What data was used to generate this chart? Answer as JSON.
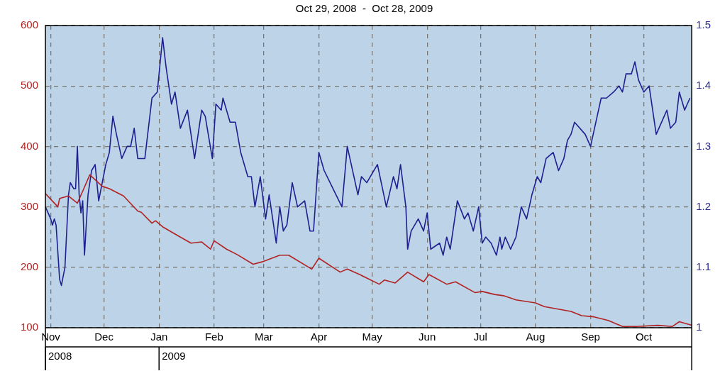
{
  "chart_data": {
    "type": "line",
    "title": "Oct 29, 2008  -  Oct 28, 2009",
    "xlim": [
      "2008-10-29",
      "2009-10-28"
    ],
    "xticks": [
      {
        "value": "2008-11-01",
        "label": "Nov"
      },
      {
        "value": "2008-12-01",
        "label": "Dec"
      },
      {
        "value": "2009-01-01",
        "label": "Jan"
      },
      {
        "value": "2009-02-01",
        "label": "Feb"
      },
      {
        "value": "2009-03-01",
        "label": "Mar"
      },
      {
        "value": "2009-04-01",
        "label": "Apr"
      },
      {
        "value": "2009-05-01",
        "label": "May"
      },
      {
        "value": "2009-06-01",
        "label": "Jun"
      },
      {
        "value": "2009-07-01",
        "label": "Jul"
      },
      {
        "value": "2009-08-01",
        "label": "Aug"
      },
      {
        "value": "2009-09-01",
        "label": "Sep"
      },
      {
        "value": "2009-10-01",
        "label": "Oct"
      }
    ],
    "ylim": [
      100,
      600
    ],
    "yticks": [
      100,
      200,
      300,
      400,
      500,
      600
    ],
    "y2lim": [
      1,
      1.5
    ],
    "y2ticks": [
      1,
      1.1,
      1.2,
      1.3,
      1.4,
      1.5
    ],
    "grid": true,
    "legend": false,
    "marker": "none",
    "line_style": "solid",
    "annotations": [
      "2008",
      "2009"
    ],
    "series": [
      {
        "color": "#b22222",
        "x": [
          "2008-10-29",
          "2008-11-05",
          "2008-11-06",
          "2008-11-11",
          "2008-11-16",
          "2008-11-19",
          "2008-11-23",
          "2008-11-30",
          "2008-12-04",
          "2008-12-12",
          "2008-12-20",
          "2008-12-22",
          "2008-12-28",
          "2008-12-30",
          "2009-01-03",
          "2009-01-13",
          "2009-01-19",
          "2009-01-25",
          "2009-01-30",
          "2009-02-01",
          "2009-02-08",
          "2009-02-14",
          "2009-02-23",
          "2009-02-28",
          "2009-03-10",
          "2009-03-15",
          "2009-03-28",
          "2009-04-01",
          "2009-04-13",
          "2009-04-17",
          "2009-04-24",
          "2009-05-05",
          "2009-05-08",
          "2009-05-14",
          "2009-05-21",
          "2009-05-30",
          "2009-06-02",
          "2009-06-12",
          "2009-06-17",
          "2009-06-28",
          "2009-07-02",
          "2009-07-09",
          "2009-07-14",
          "2009-07-21",
          "2009-08-01",
          "2009-08-06",
          "2009-08-21",
          "2009-08-27",
          "2009-09-03",
          "2009-09-11",
          "2009-09-19",
          "2009-09-27",
          "2009-10-09",
          "2009-10-17",
          "2009-10-21",
          "2009-10-28"
        ],
        "values": [
          322,
          300,
          314,
          318,
          306,
          326,
          353,
          334,
          330,
          318,
          293,
          291,
          273,
          277,
          267,
          250,
          240,
          242,
          230,
          244,
          230,
          221,
          205,
          209,
          220,
          220,
          197,
          215,
          192,
          197,
          188,
          172,
          179,
          174,
          192,
          176,
          188,
          172,
          176,
          158,
          160,
          155,
          153,
          146,
          141,
          135,
          127,
          120,
          118,
          112,
          102,
          102,
          104,
          102,
          110,
          104
        ]
      },
      {
        "color": "#1f1f8f",
        "axis": "y2",
        "x": [
          "2008-10-29",
          "2008-11-01",
          "2008-11-02",
          "2008-11-03",
          "2008-11-04",
          "2008-11-06",
          "2008-11-07",
          "2008-11-09",
          "2008-11-11",
          "2008-11-12",
          "2008-11-14",
          "2008-11-15",
          "2008-11-16",
          "2008-11-17",
          "2008-11-18",
          "2008-11-19",
          "2008-11-20",
          "2008-11-22",
          "2008-11-24",
          "2008-11-26",
          "2008-11-28",
          "2008-11-30",
          "2008-12-02",
          "2008-12-04",
          "2008-12-06",
          "2008-12-08",
          "2008-12-11",
          "2008-12-14",
          "2008-12-16",
          "2008-12-18",
          "2008-12-20",
          "2008-12-24",
          "2008-12-28",
          "2008-12-31",
          "2009-01-03",
          "2009-01-05",
          "2009-01-08",
          "2009-01-10",
          "2009-01-13",
          "2009-01-17",
          "2009-01-21",
          "2009-01-25",
          "2009-01-27",
          "2009-01-31",
          "2009-02-02",
          "2009-02-05",
          "2009-02-06",
          "2009-02-10",
          "2009-02-13",
          "2009-02-16",
          "2009-02-20",
          "2009-02-22",
          "2009-02-24",
          "2009-02-27",
          "2009-03-02",
          "2009-03-04",
          "2009-03-08",
          "2009-03-10",
          "2009-03-12",
          "2009-03-14",
          "2009-03-17",
          "2009-03-20",
          "2009-03-24",
          "2009-03-27",
          "2009-03-29",
          "2009-04-01",
          "2009-04-04",
          "2009-04-09",
          "2009-04-14",
          "2009-04-17",
          "2009-04-23",
          "2009-04-25",
          "2009-04-28",
          "2009-05-04",
          "2009-05-09",
          "2009-05-13",
          "2009-05-15",
          "2009-05-17",
          "2009-05-20",
          "2009-05-21",
          "2009-05-23",
          "2009-05-27",
          "2009-05-30",
          "2009-06-01",
          "2009-06-03",
          "2009-06-08",
          "2009-06-10",
          "2009-06-12",
          "2009-06-14",
          "2009-06-18",
          "2009-06-22",
          "2009-06-24",
          "2009-06-27",
          "2009-06-30",
          "2009-07-02",
          "2009-07-04",
          "2009-07-07",
          "2009-07-10",
          "2009-07-12",
          "2009-07-13",
          "2009-07-15",
          "2009-07-18",
          "2009-07-21",
          "2009-07-24",
          "2009-07-27",
          "2009-07-30",
          "2009-08-02",
          "2009-08-04",
          "2009-08-07",
          "2009-08-11",
          "2009-08-14",
          "2009-08-17",
          "2009-08-19",
          "2009-08-21",
          "2009-08-23",
          "2009-08-29",
          "2009-09-01",
          "2009-09-04",
          "2009-09-07",
          "2009-09-10",
          "2009-09-14",
          "2009-09-17",
          "2009-09-19",
          "2009-09-21",
          "2009-09-24",
          "2009-09-26",
          "2009-09-28",
          "2009-10-01",
          "2009-10-04",
          "2009-10-08",
          "2009-10-11",
          "2009-10-14",
          "2009-10-16",
          "2009-10-19",
          "2009-10-21",
          "2009-10-24",
          "2009-10-27"
        ],
        "values": [
          1.2,
          1.18,
          1.17,
          1.18,
          1.17,
          1.08,
          1.07,
          1.1,
          1.22,
          1.24,
          1.23,
          1.23,
          1.3,
          1.22,
          1.19,
          1.21,
          1.12,
          1.22,
          1.26,
          1.27,
          1.21,
          1.24,
          1.27,
          1.29,
          1.35,
          1.32,
          1.28,
          1.3,
          1.3,
          1.33,
          1.28,
          1.28,
          1.38,
          1.39,
          1.48,
          1.43,
          1.37,
          1.39,
          1.33,
          1.36,
          1.28,
          1.36,
          1.35,
          1.28,
          1.37,
          1.36,
          1.38,
          1.34,
          1.34,
          1.29,
          1.25,
          1.25,
          1.2,
          1.25,
          1.18,
          1.22,
          1.14,
          1.2,
          1.16,
          1.17,
          1.24,
          1.2,
          1.21,
          1.16,
          1.16,
          1.29,
          1.26,
          1.23,
          1.2,
          1.3,
          1.22,
          1.25,
          1.24,
          1.27,
          1.2,
          1.25,
          1.23,
          1.27,
          1.2,
          1.13,
          1.16,
          1.18,
          1.16,
          1.19,
          1.13,
          1.14,
          1.12,
          1.15,
          1.13,
          1.21,
          1.18,
          1.19,
          1.16,
          1.2,
          1.14,
          1.15,
          1.14,
          1.12,
          1.15,
          1.13,
          1.15,
          1.13,
          1.15,
          1.2,
          1.18,
          1.22,
          1.25,
          1.24,
          1.28,
          1.29,
          1.26,
          1.28,
          1.31,
          1.32,
          1.34,
          1.32,
          1.3,
          1.34,
          1.38,
          1.38,
          1.39,
          1.4,
          1.39,
          1.42,
          1.42,
          1.44,
          1.41,
          1.39,
          1.4,
          1.32,
          1.34,
          1.36,
          1.33,
          1.34,
          1.39,
          1.36,
          1.38
        ]
      }
    ]
  }
}
